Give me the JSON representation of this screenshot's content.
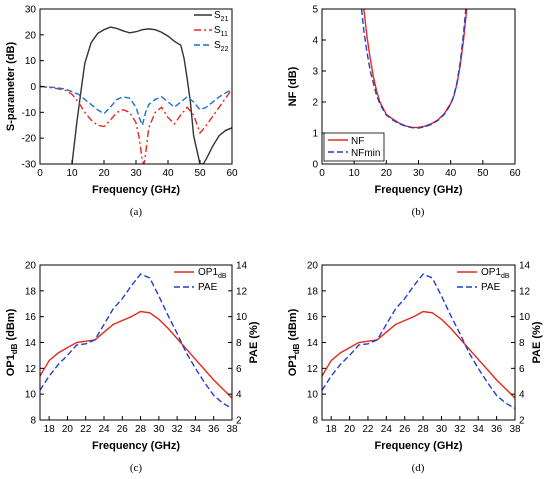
{
  "chart_data": [
    {
      "panel": "(a)",
      "type": "line",
      "xlabel": "Frequency (GHz)",
      "ylabel": "S-parameter (dB)",
      "xlim": [
        0,
        60
      ],
      "ylim": [
        -30,
        30
      ],
      "xticks": [
        0,
        10,
        20,
        30,
        40,
        50,
        60
      ],
      "yticks": [
        -30,
        -20,
        -10,
        0,
        10,
        20,
        30
      ],
      "legend_position": "top-right",
      "series": [
        {
          "name": "S21",
          "base": "S",
          "sub": "21",
          "color": "#333333",
          "style": "solid",
          "x": [
            10,
            11.5,
            13,
            14,
            16,
            18,
            20,
            22,
            24,
            26,
            28,
            30,
            32,
            34,
            36,
            38,
            40,
            42,
            44,
            45,
            46,
            47,
            48,
            50,
            51,
            52,
            54,
            56,
            58,
            60
          ],
          "y": [
            -30,
            -14,
            0,
            9,
            17,
            20.5,
            22,
            23,
            22.5,
            21.5,
            20.8,
            21.2,
            22,
            22.3,
            22,
            21,
            19.5,
            17.5,
            16,
            11,
            3,
            -6,
            -19,
            -30,
            -30,
            -28,
            -23,
            -19,
            -17,
            -16
          ]
        },
        {
          "name": "S11",
          "base": "S",
          "sub": "11",
          "color": "#e8281c",
          "style": "dashdot",
          "x": [
            0,
            4,
            8,
            10,
            12,
            14,
            16,
            18,
            20,
            22,
            24,
            26,
            28,
            30,
            31,
            32,
            32.5,
            33,
            34,
            36,
            38,
            40,
            42,
            44,
            46,
            48,
            50,
            52,
            56,
            60
          ],
          "y": [
            0,
            -0.5,
            -1.5,
            -3,
            -6,
            -10,
            -13,
            -15,
            -15.5,
            -13,
            -10,
            -9,
            -10,
            -14,
            -20,
            -29,
            -30,
            -26,
            -16,
            -10,
            -8,
            -12,
            -14.5,
            -11,
            -8,
            -11,
            -18,
            -15,
            -8,
            -1
          ]
        },
        {
          "name": "S22",
          "base": "S",
          "sub": "22",
          "color": "#1f6fd0",
          "style": "dash",
          "x": [
            0,
            4,
            8,
            10,
            12,
            14,
            16,
            18,
            20,
            22,
            24,
            26,
            28,
            30,
            31,
            32,
            33,
            34,
            36,
            38,
            40,
            42,
            44,
            46,
            48,
            50,
            52,
            56,
            60
          ],
          "y": [
            0,
            -0.3,
            -1,
            -2,
            -3,
            -5,
            -7,
            -9,
            -10.5,
            -8,
            -5,
            -4,
            -4.5,
            -8,
            -12,
            -15,
            -10,
            -7,
            -5,
            -4,
            -6,
            -8,
            -6,
            -4,
            -6,
            -9,
            -8,
            -4,
            -1
          ]
        }
      ]
    },
    {
      "panel": "(b)",
      "type": "line",
      "xlabel": "Frequency (GHz)",
      "ylabel": "NF (dB)",
      "xlim": [
        0,
        60
      ],
      "ylim": [
        0,
        5
      ],
      "xticks": [
        0,
        10,
        20,
        30,
        40,
        50,
        60
      ],
      "yticks": [
        0,
        1,
        2,
        3,
        4,
        5
      ],
      "legend_position": "bottom-left",
      "series": [
        {
          "name": "NF",
          "color": "#e8281c",
          "style": "solid",
          "x": [
            13,
            14,
            15,
            16,
            17,
            18,
            19,
            20,
            22,
            24,
            26,
            28,
            30,
            32,
            34,
            36,
            38,
            40,
            41,
            42,
            43,
            44,
            45
          ],
          "y": [
            5,
            4.1,
            3.4,
            2.8,
            2.35,
            2.0,
            1.8,
            1.6,
            1.45,
            1.32,
            1.23,
            1.18,
            1.18,
            1.22,
            1.3,
            1.42,
            1.62,
            1.95,
            2.2,
            2.6,
            3.2,
            4.0,
            5
          ]
        },
        {
          "name": "NFmin",
          "color": "#1f3fd0",
          "style": "dash",
          "x": [
            12.3,
            13,
            14,
            15,
            16,
            17,
            18,
            19,
            20,
            22,
            24,
            26,
            28,
            30,
            32,
            34,
            36,
            38,
            40,
            41,
            42,
            43,
            44,
            44.7
          ],
          "y": [
            5,
            4.3,
            3.6,
            3.0,
            2.6,
            2.2,
            1.95,
            1.75,
            1.58,
            1.42,
            1.3,
            1.22,
            1.17,
            1.16,
            1.2,
            1.28,
            1.4,
            1.6,
            1.92,
            2.2,
            2.65,
            3.3,
            4.2,
            5
          ]
        }
      ]
    },
    {
      "panel": "(c)",
      "type": "line",
      "xlabel": "Frequency (GHz)",
      "ylabel_base": "OP1",
      "ylabel_sub": "dB",
      "ylabel_tail": " (dBm)",
      "y2label": "PAE (%)",
      "xlim": [
        17,
        38
      ],
      "ylim": [
        8,
        20
      ],
      "y2lim": [
        2,
        14
      ],
      "xticks": [
        18,
        20,
        22,
        24,
        26,
        28,
        30,
        32,
        34,
        36,
        38
      ],
      "yticks": [
        8,
        10,
        12,
        14,
        16,
        18,
        20
      ],
      "y2ticks": [
        2,
        4,
        6,
        8,
        10,
        12,
        14
      ],
      "legend_position": "top-right",
      "series": [
        {
          "name": "OP1dB",
          "base": "OP1",
          "sub": "dB",
          "axis": "left",
          "color": "#e8281c",
          "style": "solid",
          "x": [
            17,
            18,
            19,
            20,
            21,
            22,
            23,
            24,
            25,
            26,
            27,
            28,
            29,
            30,
            31,
            32,
            33,
            34,
            35,
            36,
            37,
            38
          ],
          "y": [
            11.4,
            12.6,
            13.2,
            13.6,
            14.0,
            14.1,
            14.2,
            14.8,
            15.4,
            15.7,
            16.0,
            16.4,
            16.3,
            15.8,
            15.1,
            14.3,
            13.5,
            12.7,
            11.9,
            11.1,
            10.4,
            9.7
          ]
        },
        {
          "name": "PAE",
          "axis": "right",
          "color": "#1f3fd0",
          "style": "dash",
          "x": [
            17,
            18,
            19,
            20,
            21,
            22,
            23,
            24,
            25,
            26,
            27,
            28,
            29,
            30,
            31,
            32,
            33,
            34,
            35,
            36,
            37,
            38
          ],
          "y": [
            4.3,
            5.4,
            6.3,
            7.0,
            7.8,
            7.9,
            8.2,
            9.4,
            10.6,
            11.4,
            12.4,
            13.3,
            13.0,
            11.6,
            10.1,
            8.7,
            7.2,
            6.0,
            4.9,
            3.9,
            3.3,
            2.9
          ]
        }
      ]
    },
    {
      "panel": "(d)",
      "type": "line",
      "xlabel": "Frequency (GHz)",
      "ylabel_base": "OP1",
      "ylabel_sub": "dB",
      "ylabel_tail": " (dBm)",
      "y2label": "PAE (%)",
      "xlim": [
        17,
        38
      ],
      "ylim": [
        8,
        20
      ],
      "y2lim": [
        2,
        14
      ],
      "xticks": [
        18,
        20,
        22,
        24,
        26,
        28,
        30,
        32,
        34,
        36,
        38
      ],
      "yticks": [
        8,
        10,
        12,
        14,
        16,
        18,
        20
      ],
      "y2ticks": [
        2,
        4,
        6,
        8,
        10,
        12,
        14
      ],
      "legend_position": "top-right",
      "series": [
        {
          "name": "OP1dB",
          "base": "OP1",
          "sub": "dB",
          "axis": "left",
          "color": "#e8281c",
          "style": "solid",
          "x": [
            17,
            18,
            19,
            20,
            21,
            22,
            23,
            24,
            25,
            26,
            27,
            28,
            29,
            30,
            31,
            32,
            33,
            34,
            35,
            36,
            37,
            38
          ],
          "y": [
            11.4,
            12.6,
            13.2,
            13.6,
            14.0,
            14.1,
            14.2,
            14.8,
            15.4,
            15.7,
            16.0,
            16.4,
            16.3,
            15.8,
            15.1,
            14.3,
            13.5,
            12.7,
            11.9,
            11.1,
            10.4,
            9.7
          ]
        },
        {
          "name": "PAE",
          "axis": "right",
          "color": "#1f3fd0",
          "style": "dash",
          "x": [
            17,
            18,
            19,
            20,
            21,
            22,
            23,
            24,
            25,
            26,
            27,
            28,
            29,
            30,
            31,
            32,
            33,
            34,
            35,
            36,
            37,
            38
          ],
          "y": [
            4.3,
            5.4,
            6.3,
            7.0,
            7.8,
            7.9,
            8.2,
            9.4,
            10.6,
            11.4,
            12.4,
            13.3,
            13.0,
            11.6,
            10.1,
            8.7,
            7.2,
            6.0,
            4.9,
            3.9,
            3.3,
            2.9
          ]
        }
      ]
    }
  ]
}
